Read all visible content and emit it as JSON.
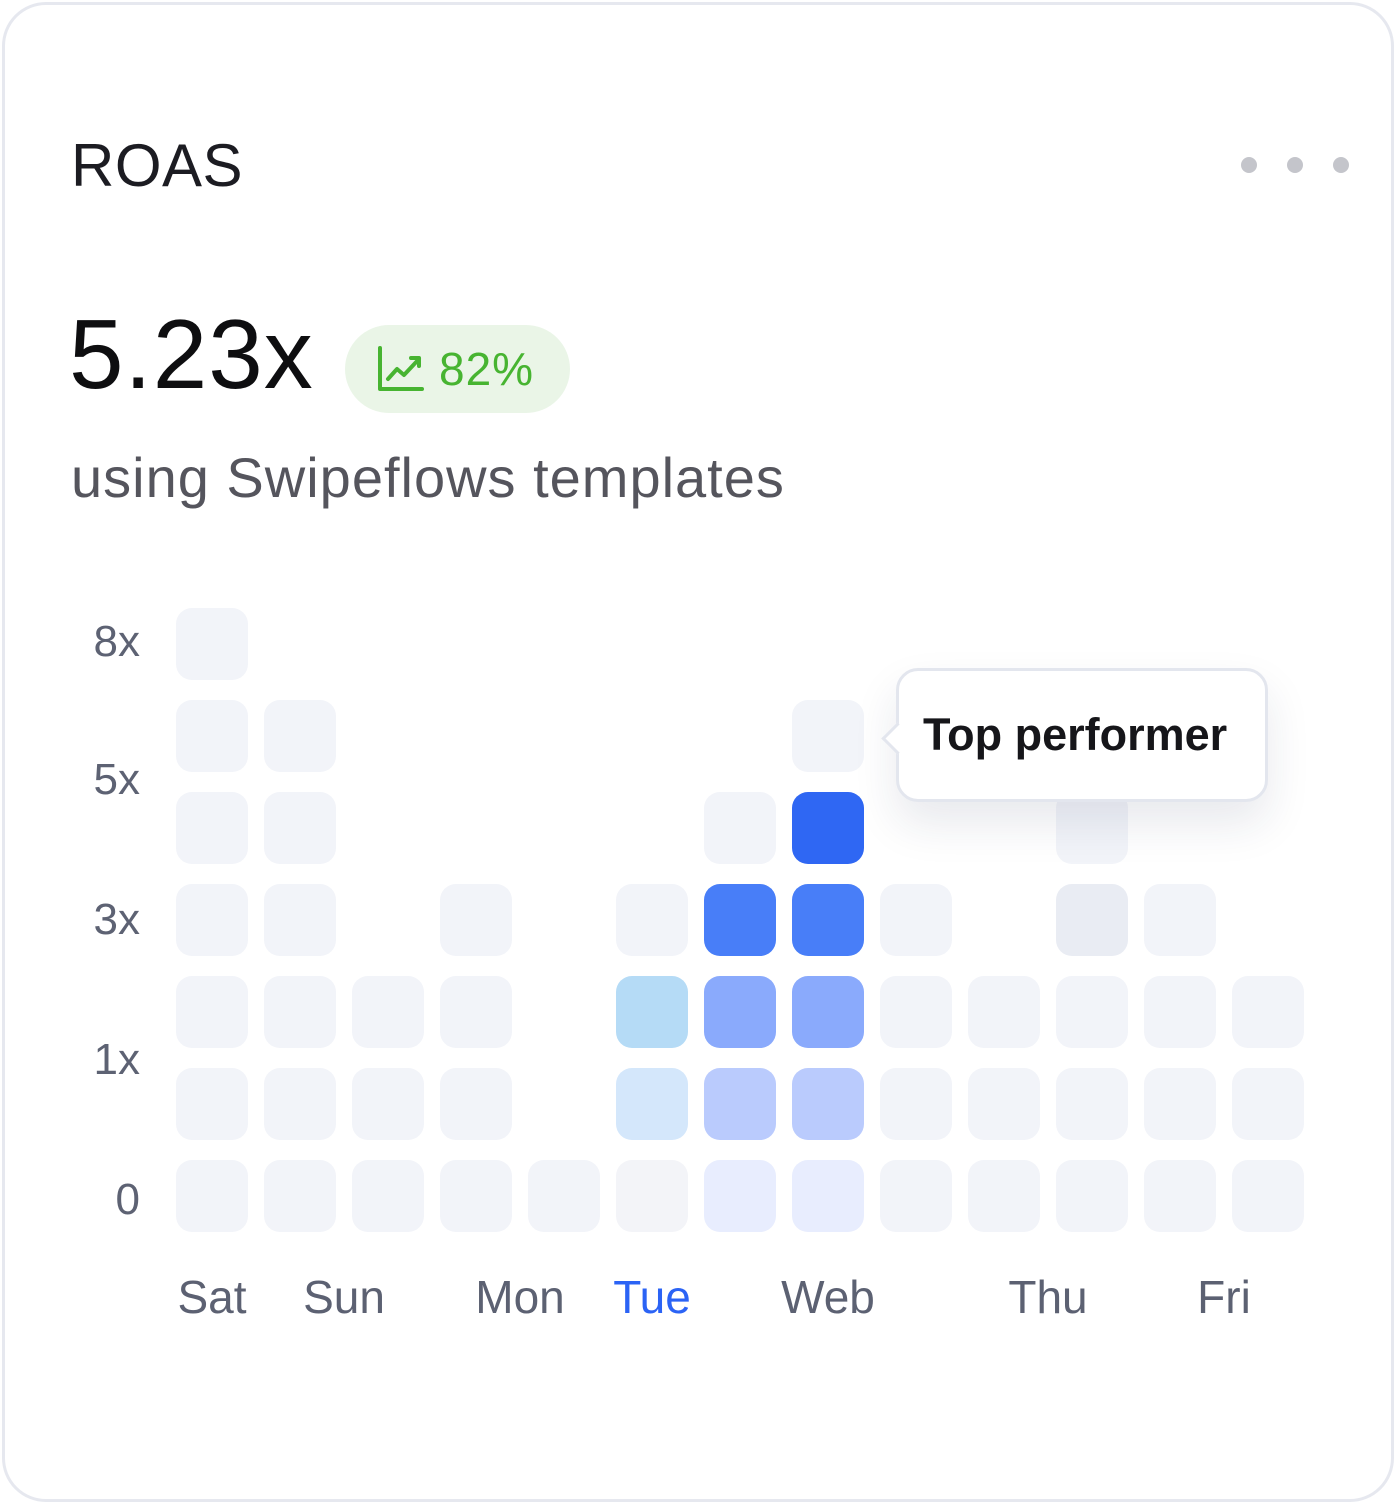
{
  "card": {
    "title": "ROAS",
    "value": "5.23x",
    "change": "82%",
    "subtitle": "using Swipeflows templates",
    "menu_icon": "more-horizontal-icon",
    "trend_icon": "trending-up-icon"
  },
  "colors": {
    "empty": "#f2f4f9",
    "badge_bg": "#eaf5e7",
    "badge_text": "#47b431",
    "accent": "#2b63f5"
  },
  "chart_data": {
    "type": "heatmap",
    "title": "",
    "xlabel": "",
    "ylabel": "",
    "y_ticks": [
      "8x",
      "5x",
      "3x",
      "1x",
      "0"
    ],
    "x_labels": [
      {
        "label": "Sat",
        "columns": [
          1
        ],
        "active": false
      },
      {
        "label": "Sun",
        "columns": [
          2,
          3
        ],
        "active": false
      },
      {
        "label": "Mon",
        "columns": [
          4,
          5
        ],
        "active": false
      },
      {
        "label": "Tue",
        "columns": [
          6
        ],
        "active": true
      },
      {
        "label": "Web",
        "columns": [
          7,
          8,
          9
        ],
        "active": false
      },
      {
        "label": "Thu",
        "columns": [
          10,
          11
        ],
        "active": false
      },
      {
        "label": "Fri",
        "columns": [
          12,
          13
        ],
        "active": false
      }
    ],
    "columns": [
      {
        "column": 1,
        "height": 7,
        "highlighted": 0
      },
      {
        "column": 2,
        "height": 6,
        "highlighted": 0
      },
      {
        "column": 3,
        "height": 3,
        "highlighted": 0
      },
      {
        "column": 4,
        "height": 4,
        "highlighted": 0
      },
      {
        "column": 5,
        "height": 1,
        "highlighted": 0
      },
      {
        "column": 6,
        "height": 4,
        "highlighted": 3
      },
      {
        "column": 7,
        "height": 5,
        "highlighted": 4
      },
      {
        "column": 8,
        "height": 6,
        "highlighted": 5
      },
      {
        "column": 9,
        "height": 4,
        "highlighted": 0
      },
      {
        "column": 10,
        "height": 3,
        "highlighted": 0
      },
      {
        "column": 11,
        "height": 5,
        "highlighted": 0
      },
      {
        "column": 12,
        "height": 4,
        "highlighted": 0
      },
      {
        "column": 13,
        "height": 3,
        "highlighted": 0
      }
    ],
    "highlight_colors": {
      "light": [
        "#f3f4f8",
        "#d4e7fb",
        "#b5dbf6",
        "#8bc7f3"
      ],
      "blue": [
        "#e8edfe",
        "#bacbfd",
        "#8aaafc",
        "#487ef8",
        "#2f67f3",
        "#2864fd"
      ]
    },
    "tooltip": {
      "text": "Top performer",
      "column": 8
    }
  }
}
